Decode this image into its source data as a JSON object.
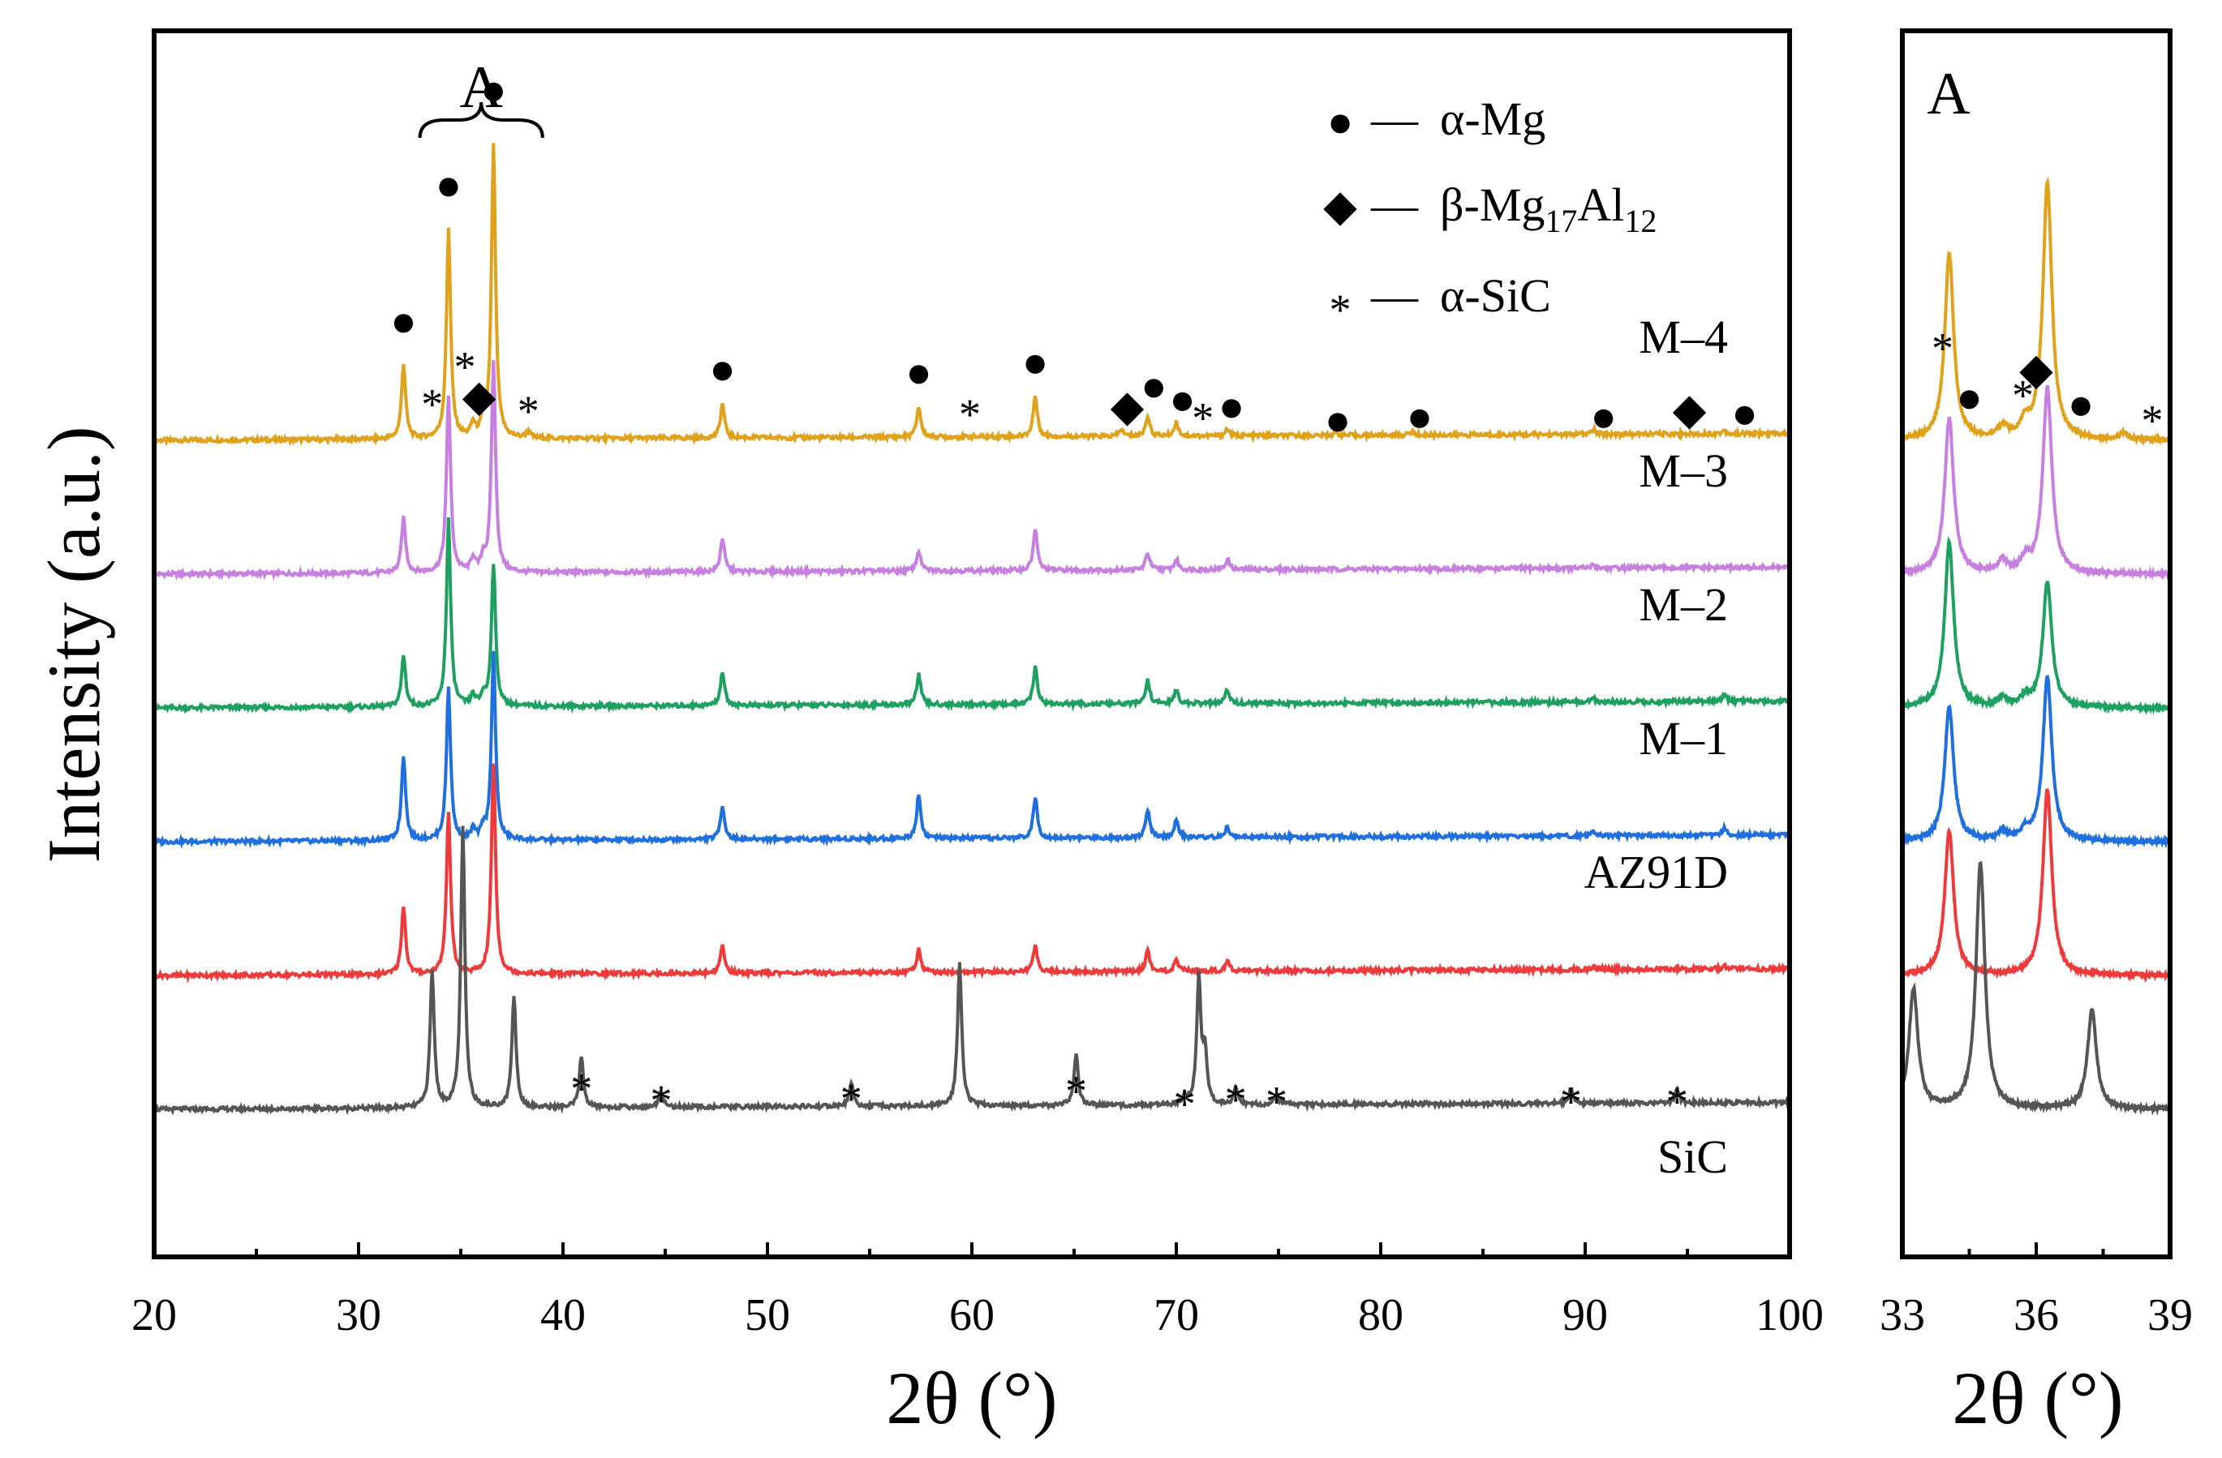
{
  "chart_data": [
    {
      "type": "line",
      "panel": "main",
      "xlabel": "2θ (°)",
      "ylabel": "Intensity (a.u.)",
      "xlim": [
        20,
        100
      ],
      "x_ticks": [
        "20",
        "30",
        "40",
        "50",
        "60",
        "70",
        "80",
        "90",
        "100"
      ],
      "x_tick_values": [
        20,
        30,
        40,
        50,
        60,
        70,
        80,
        90,
        100
      ],
      "region_label": "A",
      "region_range": [
        33,
        39
      ],
      "legend": [
        {
          "symbol": "circle",
          "marker": "●",
          "dash": "—",
          "label": "α-Mg",
          "label_parts": [
            "α-Mg",
            "",
            "",
            ""
          ]
        },
        {
          "symbol": "diamond",
          "marker": "◆",
          "dash": "—",
          "label": "β-Mg17Al12",
          "label_parts": [
            "β-Mg",
            "17",
            "Al",
            "12"
          ]
        },
        {
          "symbol": "asterisk",
          "marker": "*",
          "dash": "—",
          "label": "α-SiC",
          "label_parts": [
            "α-SiC",
            "",
            "",
            ""
          ]
        }
      ],
      "series": [
        {
          "name": "M–4",
          "color": "#E0A11B",
          "offset": 5,
          "peaks": [
            [
              32.2,
              0.22
            ],
            [
              34.4,
              0.62
            ],
            [
              35.6,
              0.04
            ],
            [
              36.1,
              0.05
            ],
            [
              36.6,
              0.86
            ],
            [
              38.3,
              0.02
            ],
            [
              47.8,
              0.1
            ],
            [
              57.4,
              0.09
            ],
            [
              63.1,
              0.12
            ],
            [
              67.3,
              0.02
            ],
            [
              68.6,
              0.06
            ],
            [
              70.0,
              0.04
            ],
            [
              72.5,
              0.02
            ],
            [
              77.8,
              0.01
            ],
            [
              81.5,
              0.01
            ],
            [
              90.4,
              0.015
            ],
            [
              96.8,
              0.01
            ]
          ],
          "label_top": "M–4",
          "label_bottom": ""
        },
        {
          "name": "M–3",
          "color": "#C77FE0",
          "offset": 4,
          "peaks": [
            [
              32.2,
              0.16
            ],
            [
              34.4,
              0.52
            ],
            [
              35.6,
              0.04
            ],
            [
              36.1,
              0.04
            ],
            [
              36.6,
              0.62
            ],
            [
              47.8,
              0.1
            ],
            [
              57.4,
              0.06
            ],
            [
              63.1,
              0.12
            ],
            [
              68.6,
              0.05
            ],
            [
              70.0,
              0.03
            ],
            [
              72.5,
              0.03
            ],
            [
              90.4,
              0.01
            ]
          ],
          "label_top": "M–3",
          "label_bottom": ""
        },
        {
          "name": "M–2",
          "color": "#1EA060",
          "offset": 3,
          "peaks": [
            [
              32.2,
              0.15
            ],
            [
              34.4,
              0.55
            ],
            [
              35.6,
              0.03
            ],
            [
              36.1,
              0.03
            ],
            [
              36.6,
              0.42
            ],
            [
              47.8,
              0.1
            ],
            [
              57.4,
              0.09
            ],
            [
              63.1,
              0.11
            ],
            [
              68.6,
              0.07
            ],
            [
              70.0,
              0.04
            ],
            [
              72.5,
              0.04
            ],
            [
              90.4,
              0.01
            ],
            [
              96.8,
              0.02
            ]
          ],
          "label_top": "M–2",
          "label_bottom": ""
        },
        {
          "name": "M–1",
          "color": "#1F6FDF",
          "offset": 2,
          "peaks": [
            [
              32.2,
              0.25
            ],
            [
              34.4,
              0.45
            ],
            [
              35.6,
              0.03
            ],
            [
              36.1,
              0.03
            ],
            [
              36.6,
              0.55
            ],
            [
              47.8,
              0.1
            ],
            [
              57.4,
              0.13
            ],
            [
              63.1,
              0.12
            ],
            [
              68.6,
              0.08
            ],
            [
              70.0,
              0.05
            ],
            [
              72.5,
              0.03
            ],
            [
              90.4,
              0.01
            ],
            [
              96.8,
              0.02
            ]
          ],
          "label_top": "M–1",
          "label_bottom": ""
        },
        {
          "name": "AZ91D",
          "color": "#EE3A3A",
          "offset": 1,
          "peaks": [
            [
              32.2,
              0.2
            ],
            [
              34.4,
              0.48
            ],
            [
              36.6,
              0.62
            ],
            [
              47.8,
              0.08
            ],
            [
              57.4,
              0.07
            ],
            [
              63.1,
              0.08
            ],
            [
              68.6,
              0.06
            ],
            [
              70.0,
              0.03
            ],
            [
              72.5,
              0.03
            ],
            [
              90.4,
              0.01
            ],
            [
              96.8,
              0.01
            ]
          ],
          "label_top": "AZ91D",
          "label_bottom": ""
        },
        {
          "name": "SiC",
          "color": "#555555",
          "offset": 0,
          "peaks": [
            [
              33.6,
              0.4
            ],
            [
              35.1,
              0.82
            ],
            [
              37.6,
              0.33
            ],
            [
              40.9,
              0.15
            ],
            [
              44.8,
              0.05
            ],
            [
              54.1,
              0.07
            ],
            [
              59.4,
              0.42
            ],
            [
              65.1,
              0.15
            ],
            [
              70.4,
              0.02
            ],
            [
              71.1,
              0.37
            ],
            [
              71.4,
              0.15
            ],
            [
              72.9,
              0.05
            ],
            [
              74.9,
              0.03
            ],
            [
              89.3,
              0.04
            ],
            [
              94.5,
              0.04
            ]
          ],
          "label_top": "",
          "label_bottom": "SiC"
        }
      ],
      "annotations": [
        {
          "symbol": "circle",
          "text": "●",
          "x": 32.2,
          "level": 0.35
        },
        {
          "symbol": "circle",
          "text": "●",
          "x": 34.4,
          "level": 0.75
        },
        {
          "symbol": "circle",
          "text": "●",
          "x": 36.6,
          "level": 1.03
        },
        {
          "symbol": "asterisk",
          "text": "*",
          "x": 33.6,
          "level": 0.12
        },
        {
          "symbol": "asterisk",
          "text": "*",
          "x": 35.2,
          "level": 0.23
        },
        {
          "symbol": "diamond",
          "text": "◆",
          "x": 35.9,
          "level": 0.13
        },
        {
          "symbol": "asterisk",
          "text": "*",
          "x": 38.3,
          "level": 0.1
        },
        {
          "symbol": "circle",
          "text": "●",
          "x": 47.8,
          "level": 0.21
        },
        {
          "symbol": "circle",
          "text": "●",
          "x": 57.4,
          "level": 0.2
        },
        {
          "symbol": "asterisk",
          "text": "*",
          "x": 59.9,
          "level": 0.09
        },
        {
          "symbol": "circle",
          "text": "●",
          "x": 63.1,
          "level": 0.23
        },
        {
          "symbol": "diamond",
          "text": "◆",
          "x": 67.6,
          "level": 0.1
        },
        {
          "symbol": "circle",
          "text": "●",
          "x": 68.9,
          "level": 0.16
        },
        {
          "symbol": "circle",
          "text": "●",
          "x": 70.3,
          "level": 0.12
        },
        {
          "symbol": "asterisk",
          "text": "*",
          "x": 71.3,
          "level": 0.08
        },
        {
          "symbol": "circle",
          "text": "●",
          "x": 72.7,
          "level": 0.1
        },
        {
          "symbol": "circle",
          "text": "●",
          "x": 77.9,
          "level": 0.06
        },
        {
          "symbol": "circle",
          "text": "●",
          "x": 81.9,
          "level": 0.07
        },
        {
          "symbol": "circle",
          "text": "●",
          "x": 90.9,
          "level": 0.07
        },
        {
          "symbol": "diamond",
          "text": "◆",
          "x": 95.1,
          "level": 0.09
        },
        {
          "symbol": "circle",
          "text": "●",
          "x": 97.8,
          "level": 0.08
        },
        {
          "symbol": "asterisk",
          "text": "*",
          "x": 40.9,
          "level": -0.55
        },
        {
          "symbol": "asterisk",
          "text": "*",
          "x": 44.8,
          "level": -0.76
        },
        {
          "symbol": "asterisk",
          "text": "*",
          "x": 54.1,
          "level": -0.73
        },
        {
          "symbol": "asterisk",
          "text": "*",
          "x": 65.1,
          "level": -0.59
        },
        {
          "symbol": "asterisk",
          "text": "*",
          "x": 70.4,
          "level": -0.82
        },
        {
          "symbol": "asterisk",
          "text": "*",
          "x": 72.9,
          "level": -0.74
        },
        {
          "symbol": "asterisk",
          "text": "*",
          "x": 74.9,
          "level": -0.78
        },
        {
          "symbol": "asterisk",
          "text": "*",
          "x": 89.3,
          "level": -0.78
        },
        {
          "symbol": "asterisk",
          "text": "*",
          "x": 94.5,
          "level": -0.78
        }
      ]
    },
    {
      "type": "line",
      "panel": "zoom",
      "xlabel": "2θ (°)",
      "xlim": [
        33,
        39
      ],
      "x_ticks": [
        "33",
        "36",
        "39"
      ],
      "x_tick_values": [
        33,
        36,
        39
      ],
      "region_label": "A",
      "annotations": [
        {
          "symbol": "asterisk",
          "text": "*",
          "x": 33.9
        },
        {
          "symbol": "circle",
          "text": "●",
          "x": 34.5
        },
        {
          "symbol": "asterisk",
          "text": "*",
          "x": 35.7
        },
        {
          "symbol": "diamond",
          "text": "◆",
          "x": 36.0
        },
        {
          "symbol": "circle",
          "text": "●",
          "x": 37.0
        },
        {
          "symbol": "asterisk",
          "text": "*",
          "x": 38.6
        }
      ]
    }
  ]
}
